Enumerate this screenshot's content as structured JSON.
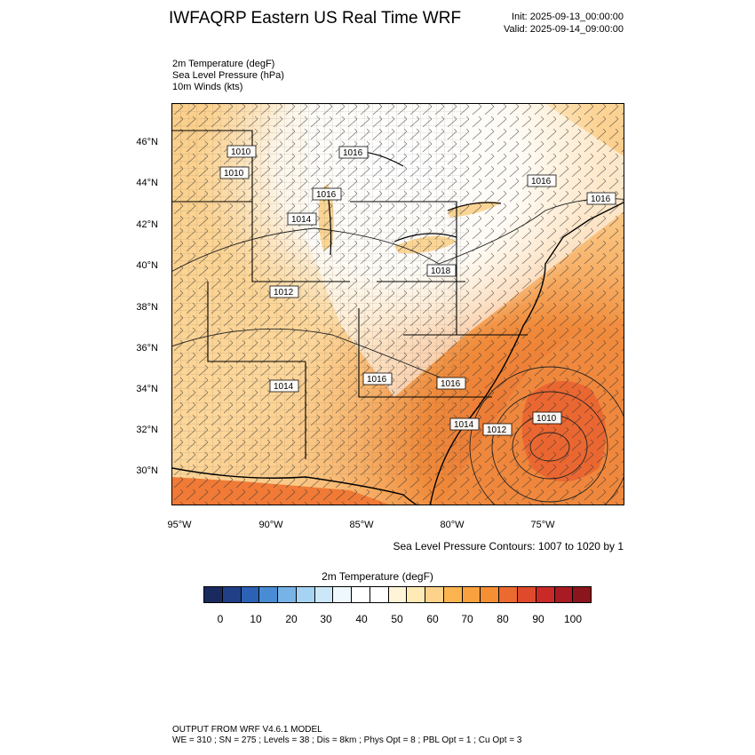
{
  "header": {
    "title": "IWFAQRP Eastern US Real Time WRF",
    "init": "Init: 2025-09-13_00:00:00",
    "valid": "Valid: 2025-09-14_09:00:00"
  },
  "variables": {
    "line1": "2m Temperature   (degF)",
    "line2": "Sea Level Pressure   (hPa)",
    "line3": "10m Winds   (kts)"
  },
  "axes": {
    "lat_labels": [
      "46°N",
      "44°N",
      "42°N",
      "40°N",
      "38°N",
      "36°N",
      "34°N",
      "32°N",
      "30°N"
    ],
    "lon_labels": [
      "95°W",
      "90°W",
      "85°W",
      "80°W",
      "75°W"
    ]
  },
  "contour_note": "Sea Level Pressure Contours: 1007 to 1020 by 1",
  "pressure_labels": [
    "1010",
    "1010",
    "1016",
    "1014",
    "1012",
    "1014",
    "1016",
    "1016",
    "1014",
    "1012",
    "1010",
    "1016",
    "1016",
    "1016",
    "1018",
    "1016"
  ],
  "colorbar": {
    "title": "2m Temperature  (degF)",
    "tick_labels": [
      "0",
      "10",
      "20",
      "30",
      "40",
      "50",
      "60",
      "70",
      "80",
      "90",
      "100"
    ],
    "colors": [
      "#1a2a5e",
      "#213f86",
      "#2b62b5",
      "#4a8cd3",
      "#78b3e6",
      "#a6d3f2",
      "#cce8f8",
      "#eef8fd",
      "#ffffff",
      "#ffffff",
      "#fff4d8",
      "#feeab4",
      "#fdd28a",
      "#fbb450",
      "#f9a13e",
      "#f48f34",
      "#eb6a30",
      "#e04a2c",
      "#c92a28",
      "#a91b22",
      "#8b151c"
    ]
  },
  "footer": {
    "line1": "OUTPUT FROM WRF V4.6.1 MODEL",
    "line2": "WE = 310 ; SN = 275 ; Levels = 38 ; Dis = 8km ; Phys Opt = 8 ; PBL Opt = 1 ; Cu Opt = 3"
  }
}
